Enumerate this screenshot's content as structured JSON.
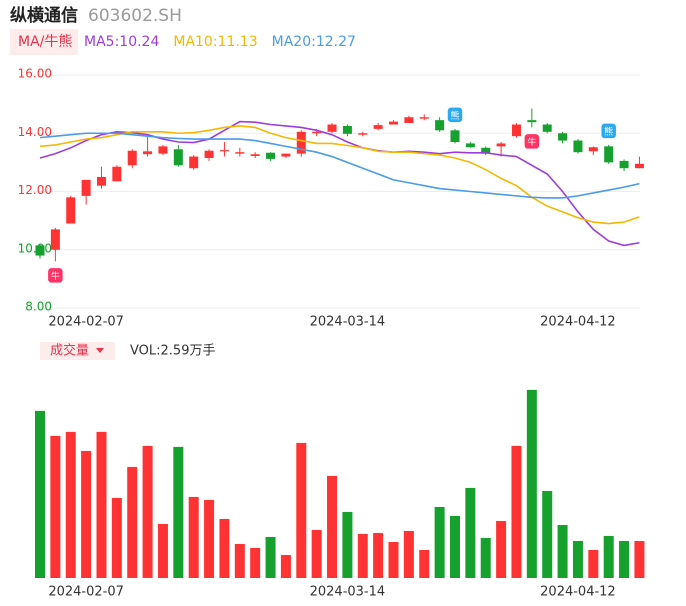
{
  "chart_data": [
    {
      "type": "candlestick",
      "title": "纵横通信",
      "subtitle": "603602.SH",
      "indicator": "MA/牛熊",
      "up_color": "#ff3333",
      "down_color": "#16a02e",
      "categories": [
        null,
        null,
        null,
        "2024-02-07",
        null,
        null,
        null,
        null,
        null,
        null,
        null,
        null,
        null,
        null,
        null,
        null,
        null,
        null,
        null,
        null,
        "2024-03-14",
        null,
        null,
        null,
        null,
        null,
        null,
        null,
        null,
        null,
        null,
        null,
        null,
        null,
        null,
        "2024-04-12",
        null,
        null,
        null,
        null
      ],
      "open": [
        10.15,
        10.0,
        10.9,
        11.85,
        12.2,
        12.35,
        12.9,
        13.28,
        13.3,
        13.45,
        12.8,
        13.15,
        13.38,
        13.3,
        13.22,
        13.33,
        13.2,
        13.3,
        14.0,
        14.05,
        14.25,
        13.95,
        14.15,
        14.3,
        14.35,
        14.5,
        14.45,
        14.1,
        13.65,
        13.5,
        13.55,
        13.9,
        14.45,
        14.3,
        14.0,
        13.75,
        13.38,
        13.55,
        13.05,
        12.8
      ],
      "close": [
        9.8,
        10.7,
        11.8,
        12.4,
        12.5,
        12.85,
        13.4,
        13.38,
        13.55,
        12.9,
        13.2,
        13.4,
        13.42,
        13.35,
        13.28,
        13.12,
        13.3,
        14.05,
        14.05,
        14.3,
        13.98,
        14.0,
        14.28,
        14.4,
        14.55,
        14.55,
        14.1,
        13.7,
        13.52,
        13.3,
        13.65,
        14.3,
        14.38,
        14.05,
        13.75,
        13.35,
        13.52,
        13.0,
        12.8,
        12.95
      ],
      "high": [
        10.2,
        10.75,
        11.85,
        12.4,
        12.85,
        12.9,
        13.45,
        13.9,
        13.6,
        13.6,
        13.25,
        13.45,
        13.7,
        13.5,
        13.35,
        13.35,
        13.3,
        14.1,
        14.15,
        14.35,
        14.3,
        14.05,
        14.35,
        14.45,
        14.6,
        14.65,
        14.55,
        14.15,
        13.7,
        13.55,
        13.7,
        14.35,
        14.85,
        14.35,
        14.05,
        13.8,
        13.55,
        13.6,
        13.1,
        13.2
      ],
      "low": [
        9.7,
        9.6,
        10.9,
        11.55,
        12.1,
        12.35,
        12.8,
        13.2,
        13.25,
        12.85,
        12.75,
        13.05,
        13.2,
        13.2,
        13.15,
        13.05,
        13.15,
        13.2,
        13.9,
        14.0,
        13.9,
        13.9,
        14.1,
        14.3,
        14.35,
        14.45,
        14.05,
        13.65,
        13.5,
        13.25,
        13.2,
        13.85,
        14.2,
        14.0,
        13.65,
        13.3,
        13.25,
        12.95,
        12.7,
        12.8
      ],
      "series": [
        {
          "name": "MA5:10.24",
          "color": "#9b3ddc",
          "values": [
            13.15,
            13.3,
            13.5,
            13.75,
            13.95,
            14.05,
            14.02,
            13.95,
            13.8,
            13.7,
            13.68,
            13.8,
            14.1,
            14.4,
            14.38,
            14.3,
            14.25,
            14.2,
            14.1,
            13.95,
            13.7,
            13.5,
            13.4,
            13.35,
            13.38,
            13.35,
            13.3,
            13.35,
            13.33,
            13.33,
            13.25,
            13.2,
            12.9,
            12.6,
            12.0,
            11.3,
            10.7,
            10.3,
            10.15,
            10.24
          ]
        },
        {
          "name": "MA10:11.13",
          "color": "#f5b800",
          "values": [
            13.55,
            13.6,
            13.7,
            13.8,
            13.85,
            13.95,
            14.05,
            14.05,
            14.05,
            14.0,
            14.02,
            14.1,
            14.2,
            14.25,
            14.2,
            14.0,
            13.85,
            13.75,
            13.65,
            13.65,
            13.58,
            13.5,
            13.38,
            13.35,
            13.35,
            13.3,
            13.25,
            13.15,
            13.0,
            12.75,
            12.45,
            12.2,
            11.8,
            11.5,
            11.3,
            11.1,
            10.95,
            10.9,
            10.95,
            11.13
          ]
        },
        {
          "name": "MA20:12.27",
          "color": "#4a9be8",
          "values": [
            13.85,
            13.9,
            13.95,
            14.0,
            14.0,
            14.0,
            13.95,
            13.9,
            13.85,
            13.82,
            13.8,
            13.8,
            13.8,
            13.8,
            13.75,
            13.65,
            13.55,
            13.45,
            13.35,
            13.2,
            13.0,
            12.8,
            12.6,
            12.4,
            12.3,
            12.2,
            12.1,
            12.05,
            12.0,
            11.95,
            11.9,
            11.85,
            11.8,
            11.78,
            11.78,
            11.85,
            11.95,
            12.05,
            12.15,
            12.27
          ]
        }
      ],
      "annotations": [
        {
          "index": 1,
          "text": "牛",
          "color": "#ff3366",
          "side": "below"
        },
        {
          "index": 27,
          "text": "熊",
          "color": "#2aa8f0",
          "side": "above"
        },
        {
          "index": 32,
          "text": "牛",
          "color": "#ff3366",
          "side": "below"
        },
        {
          "index": 37,
          "text": "熊",
          "color": "#2aa8f0",
          "side": "above"
        }
      ],
      "ylim": [
        8,
        16
      ],
      "yticks": [
        {
          "value": 8,
          "label": "8.00",
          "color": "#16a02e"
        },
        {
          "value": 10,
          "label": "10.00",
          "color": "#16a02e"
        },
        {
          "value": 12,
          "label": "12.00",
          "color": "#ff3333"
        },
        {
          "value": 14,
          "label": "14.00",
          "color": "#ff3333"
        },
        {
          "value": 16,
          "label": "16.00",
          "color": "#ff3333"
        }
      ],
      "grid": true
    },
    {
      "type": "bar",
      "title": "成交量",
      "label": "VOL:2.59万手",
      "ylim": [
        0,
        13.5
      ],
      "values": [
        11.69,
        9.94,
        10.22,
        8.89,
        10.22,
        5.6,
        7.77,
        9.24,
        3.78,
        9.17,
        5.67,
        5.46,
        4.13,
        2.38,
        2.1,
        2.87,
        1.61,
        9.45,
        3.36,
        7.14,
        4.62,
        3.08,
        3.15,
        2.52,
        3.29,
        1.96,
        4.97,
        4.34,
        6.3,
        2.8,
        3.99,
        9.24,
        13.16,
        6.09,
        3.71,
        2.59,
        1.96,
        2.94,
        2.59,
        2.59
      ]
    }
  ]
}
